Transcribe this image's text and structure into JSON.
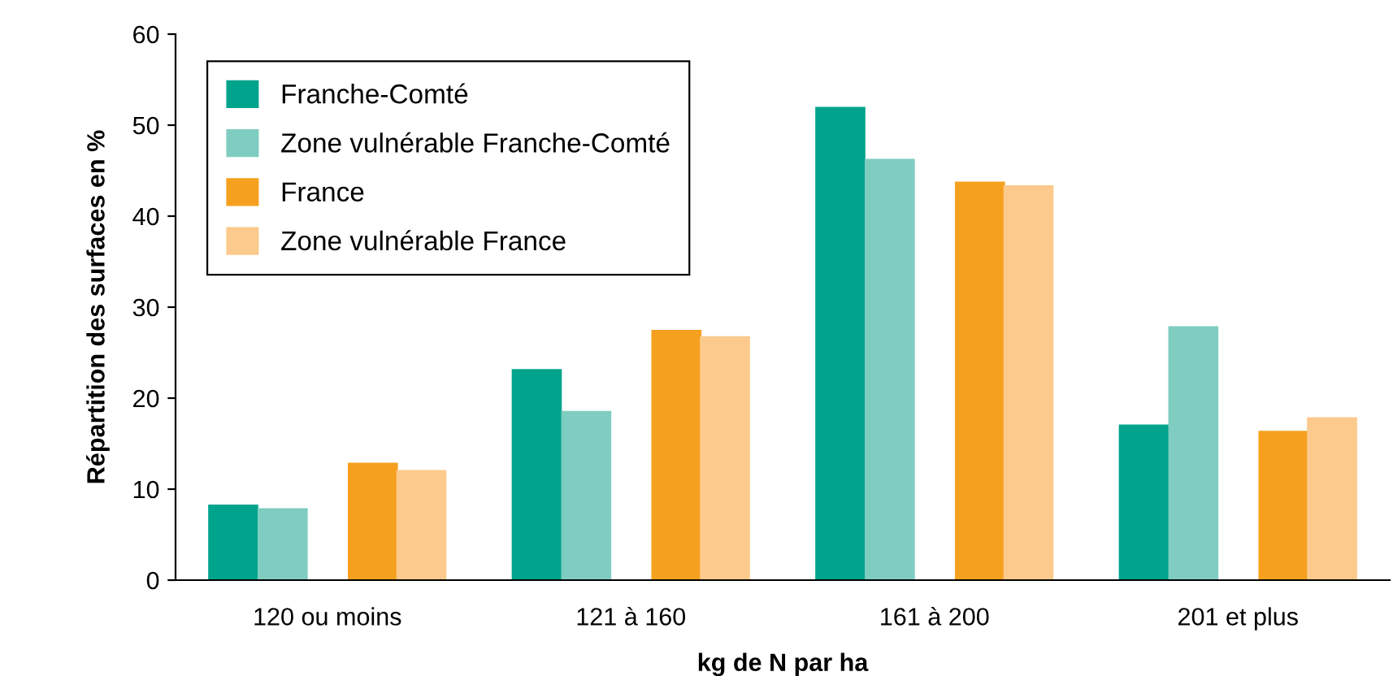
{
  "chart_data": {
    "type": "bar",
    "xlabel": "kg de N par ha",
    "ylabel": "Répartition des surfaces en %",
    "categories": [
      "120 ou moins",
      "121 à 160",
      "161 à 200",
      "201 et plus"
    ],
    "series": [
      {
        "name": "Franche-Comté",
        "color": "#00a48c",
        "values": [
          8.3,
          23.2,
          52.0,
          17.1
        ]
      },
      {
        "name": "Zone vulnérable Franche-Comté",
        "color": "#7fcdc0",
        "values": [
          7.9,
          18.6,
          46.3,
          27.9
        ]
      },
      {
        "name": "France",
        "color": "#f5a01e",
        "values": [
          12.9,
          27.5,
          43.8,
          16.4
        ]
      },
      {
        "name": "Zone vulnérable France",
        "color": "#fcca8c",
        "values": [
          12.1,
          26.8,
          43.4,
          17.9
        ]
      }
    ],
    "ylim": [
      0,
      60
    ],
    "yticks": [
      0,
      10,
      20,
      30,
      40,
      50,
      60
    ],
    "grid": false,
    "legend": "top left"
  }
}
